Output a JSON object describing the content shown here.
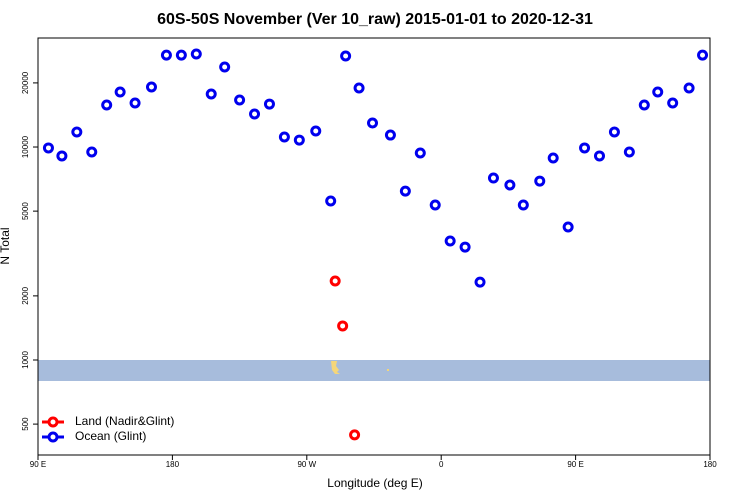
{
  "chart_data": {
    "type": "scatter",
    "title": "60S-50S November (Ver 10_raw)   2015-01-01 to 2020-12-31",
    "x_label": "Longitude (deg E)",
    "y_label": "N Total",
    "y_scale": "log",
    "xlim": [
      90,
      540
    ],
    "ylim": [
      358,
      32500
    ],
    "xticks": [
      {
        "value": 90,
        "label": "90 E"
      },
      {
        "value": 180,
        "label": "180"
      },
      {
        "value": 270,
        "label": "90 W"
      },
      {
        "value": 360,
        "label": "0"
      },
      {
        "value": 450,
        "label": "90 E"
      },
      {
        "value": 540,
        "label": "180"
      }
    ],
    "yticks": [
      500,
      1000,
      2000,
      5000,
      10000,
      20000
    ],
    "legend": "bottom-left",
    "series": [
      {
        "name": "Land (Nadir&Glint)",
        "color": "#ff0000",
        "x": [
          289,
          294,
          302
        ],
        "values": [
          2350,
          1445,
          445
        ]
      },
      {
        "name": "Ocean (Glint)",
        "color": "#0000ee",
        "x": [
          97,
          106,
          116,
          126,
          136,
          145,
          155,
          166,
          176,
          186,
          196,
          206,
          215,
          225,
          235,
          245,
          255,
          265,
          276,
          286,
          296,
          305,
          314,
          326,
          336,
          346,
          356,
          366,
          376,
          386,
          395,
          406,
          415,
          426,
          435,
          445,
          456,
          466,
          476,
          486,
          496,
          505,
          515,
          526,
          535
        ],
        "values": [
          9900,
          9080,
          11760,
          9480,
          15750,
          18120,
          16100,
          19130,
          27000,
          27000,
          27340,
          17740,
          23750,
          16620,
          14290,
          15910,
          11140,
          10780,
          11890,
          5580,
          26750,
          18920,
          12960,
          11380,
          6210,
          9370,
          5340,
          3620,
          3390,
          2320,
          7150,
          6630,
          5340,
          6920,
          8880,
          4210,
          9900,
          9080,
          11760,
          9480,
          15750,
          18120,
          16100,
          18920,
          27000
        ]
      }
    ]
  }
}
